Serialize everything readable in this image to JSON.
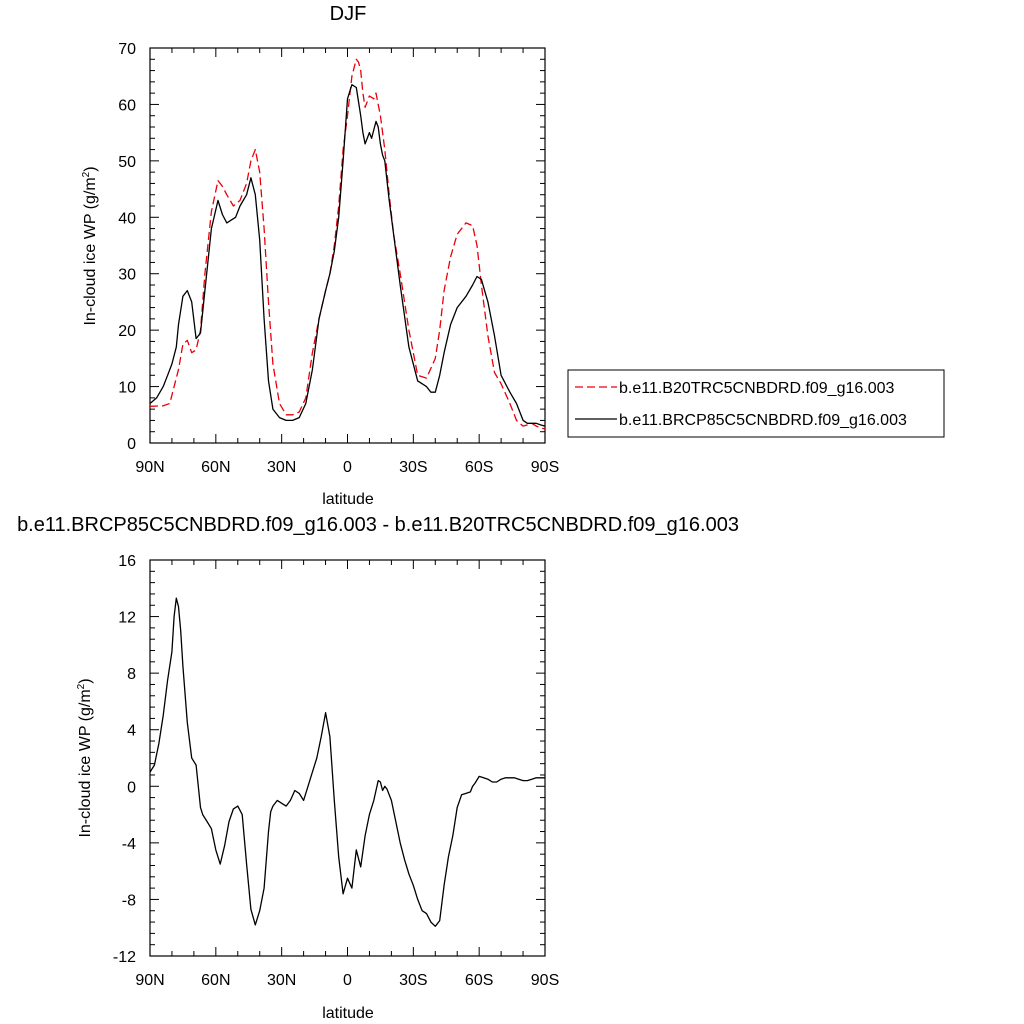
{
  "chart_data": [
    {
      "type": "line",
      "title": "DJF",
      "xlabel": "latitude",
      "ylabel": "In-cloud ice WP (g/m",
      "ylabel_sup": "2",
      "ylabel_tail": ")",
      "xlim": [
        -90,
        90
      ],
      "ylim": [
        0,
        70
      ],
      "x_tick_values": [
        -90,
        -60,
        -30,
        0,
        30,
        60,
        90
      ],
      "x_tick_labels": [
        "90N",
        "60N",
        "30N",
        "0",
        "30S",
        "60S",
        "90S"
      ],
      "y_tick_values": [
        0,
        10,
        20,
        30,
        40,
        50,
        60,
        70
      ],
      "y_tick_labels": [
        "0",
        "10",
        "20",
        "30",
        "40",
        "50",
        "60",
        "70"
      ],
      "legend": "right",
      "series": [
        {
          "name": "b.e11.B20TRC5CNBDRD.f09_g16.003",
          "color": "#e8000b",
          "dash": "dashed",
          "x": [
            -90,
            -84,
            -81,
            -79,
            -77,
            -75,
            -73,
            -71,
            -69,
            -67,
            -65,
            -62,
            -59,
            -57,
            -55,
            -52,
            -49,
            -46,
            -44,
            -42,
            -40,
            -38,
            -36,
            -34,
            -31,
            -28,
            -25,
            -22,
            -19,
            -16,
            -13,
            -10,
            -8,
            -6,
            -4,
            -2,
            0,
            2,
            4,
            5,
            6,
            7,
            8,
            10,
            12,
            13,
            15,
            17,
            19,
            21,
            24,
            28,
            32,
            36,
            40,
            42,
            44,
            47,
            50,
            54,
            57,
            59,
            61,
            64,
            67,
            70,
            74,
            77,
            80,
            82,
            84,
            86,
            88,
            90
          ],
          "y": [
            6.5,
            6.6,
            7,
            10,
            13,
            17.5,
            18.2,
            16,
            16.5,
            20,
            30,
            41,
            46.5,
            45.5,
            44,
            42,
            43,
            46,
            50,
            52,
            48,
            38,
            25,
            14,
            7,
            5,
            5,
            5.5,
            8,
            16,
            22,
            27,
            30,
            35,
            42,
            52,
            58,
            65,
            68,
            67.5,
            66,
            62,
            59.5,
            61.5,
            61,
            62,
            58,
            52,
            44,
            37,
            30,
            20,
            12,
            11.5,
            15,
            20,
            27,
            33,
            37,
            39,
            38.5,
            35,
            28,
            19,
            12.5,
            10.5,
            7,
            4,
            3,
            3.2,
            3.5,
            3,
            2.7,
            2.5
          ]
        },
        {
          "name": "b.e11.BRCP85C5CNBDRD.f09_g16.003",
          "color": "#000000",
          "dash": "solid",
          "x": [
            -90,
            -87,
            -84,
            -82,
            -80,
            -78,
            -77,
            -75,
            -73,
            -71,
            -69,
            -67,
            -65,
            -62,
            -59,
            -57,
            -55,
            -53,
            -51,
            -49,
            -46,
            -44,
            -42,
            -40,
            -38,
            -36,
            -34,
            -31,
            -28,
            -25,
            -22,
            -19,
            -16,
            -13,
            -10,
            -8,
            -6,
            -4,
            -2,
            0,
            2,
            4,
            5,
            6,
            7,
            8,
            10,
            11,
            13,
            14,
            15,
            16,
            17,
            19,
            21,
            24,
            28,
            32,
            36,
            38,
            40,
            42,
            44,
            47,
            50,
            54,
            57,
            59,
            61,
            64,
            67,
            70,
            74,
            77,
            80,
            82,
            84,
            86,
            88,
            90
          ],
          "y": [
            7,
            8,
            10,
            12,
            14,
            17,
            21,
            26,
            27,
            25,
            18.5,
            19.5,
            27,
            38,
            43,
            40.5,
            39,
            39.5,
            40,
            42,
            44,
            47,
            44,
            36,
            22,
            11,
            6,
            4.5,
            4,
            4,
            4.5,
            7,
            13,
            22,
            27,
            30,
            34,
            40,
            50,
            61,
            63.5,
            63,
            60.5,
            58,
            55,
            53,
            55,
            54,
            57,
            56,
            53,
            51,
            50,
            43,
            37,
            28,
            17,
            11,
            10,
            9,
            9,
            12,
            16,
            21,
            24,
            26,
            28,
            29.5,
            29,
            25,
            19,
            12,
            9,
            7,
            4,
            3.5,
            3.5,
            3.5,
            3.2,
            3
          ]
        }
      ]
    },
    {
      "type": "line",
      "title": "b.e11.BRCP85C5CNBDRD.f09_g16.003 - b.e11.B20TRC5CNBDRD.f09_g16.003",
      "xlabel": "latitude",
      "ylabel": "In-cloud ice WP (g/m",
      "ylabel_sup": "2",
      "ylabel_tail": ")",
      "xlim": [
        -90,
        90
      ],
      "ylim": [
        -12,
        16
      ],
      "x_tick_values": [
        -90,
        -60,
        -30,
        0,
        30,
        60,
        90
      ],
      "x_tick_labels": [
        "90N",
        "60N",
        "30N",
        "0",
        "30S",
        "60S",
        "90S"
      ],
      "y_tick_values": [
        -12,
        -8,
        -4,
        0,
        4,
        8,
        12,
        16
      ],
      "y_tick_labels": [
        "-12",
        "-8",
        "-4",
        "0",
        "4",
        "8",
        "12",
        "16"
      ],
      "series": [
        {
          "color": "#000000",
          "dash": "solid",
          "x": [
            -90,
            -88,
            -86,
            -84,
            -82,
            -80,
            -79,
            -78,
            -77,
            -76,
            -75,
            -73,
            -71,
            -69,
            -68,
            -67,
            -66,
            -64,
            -62,
            -60,
            -58,
            -56,
            -54,
            -52,
            -50,
            -48,
            -46,
            -44,
            -42,
            -40,
            -38,
            -36,
            -35,
            -34,
            -32,
            -30,
            -28,
            -26,
            -24,
            -22,
            -20,
            -18,
            -16,
            -14,
            -12,
            -10,
            -8,
            -6,
            -4,
            -2,
            0,
            2,
            4,
            6,
            8,
            10,
            12,
            14,
            15,
            16,
            17,
            18,
            20,
            22,
            24,
            26,
            28,
            30,
            32,
            34,
            36,
            38,
            40,
            42,
            44,
            46,
            48,
            50,
            52,
            54,
            56,
            57,
            58,
            60,
            62,
            64,
            66,
            68,
            70,
            72,
            74,
            76,
            78,
            80,
            82,
            84,
            86,
            88,
            90
          ],
          "y": [
            1,
            1.5,
            3,
            5,
            7.5,
            9.5,
            12,
            13.3,
            12.7,
            11,
            8.5,
            4.5,
            2,
            1.5,
            0,
            -1.5,
            -2,
            -2.5,
            -3,
            -4.5,
            -5.5,
            -4.2,
            -2.5,
            -1.6,
            -1.4,
            -2,
            -5.5,
            -8.7,
            -9.8,
            -8.8,
            -7.2,
            -3.2,
            -1.8,
            -1.4,
            -1,
            -1.2,
            -1.4,
            -1,
            -0.3,
            -0.5,
            -1,
            0,
            1,
            2,
            3.5,
            5.2,
            3.5,
            -1,
            -5,
            -7.6,
            -6.5,
            -7.2,
            -4.5,
            -5.7,
            -3.5,
            -2,
            -1,
            0.4,
            0.3,
            -0.3,
            0,
            -0.2,
            -1,
            -2.5,
            -4,
            -5.2,
            -6.2,
            -7,
            -8,
            -8.8,
            -9,
            -9.6,
            -9.9,
            -9.5,
            -7,
            -5,
            -3.5,
            -1.5,
            -0.6,
            -0.5,
            -0.4,
            0,
            0.2,
            0.7,
            0.6,
            0.5,
            0.3,
            0.3,
            0.5,
            0.6,
            0.6,
            0.6,
            0.5,
            0.4,
            0.4,
            0.5,
            0.6,
            0.6,
            0.6
          ]
        }
      ]
    }
  ]
}
